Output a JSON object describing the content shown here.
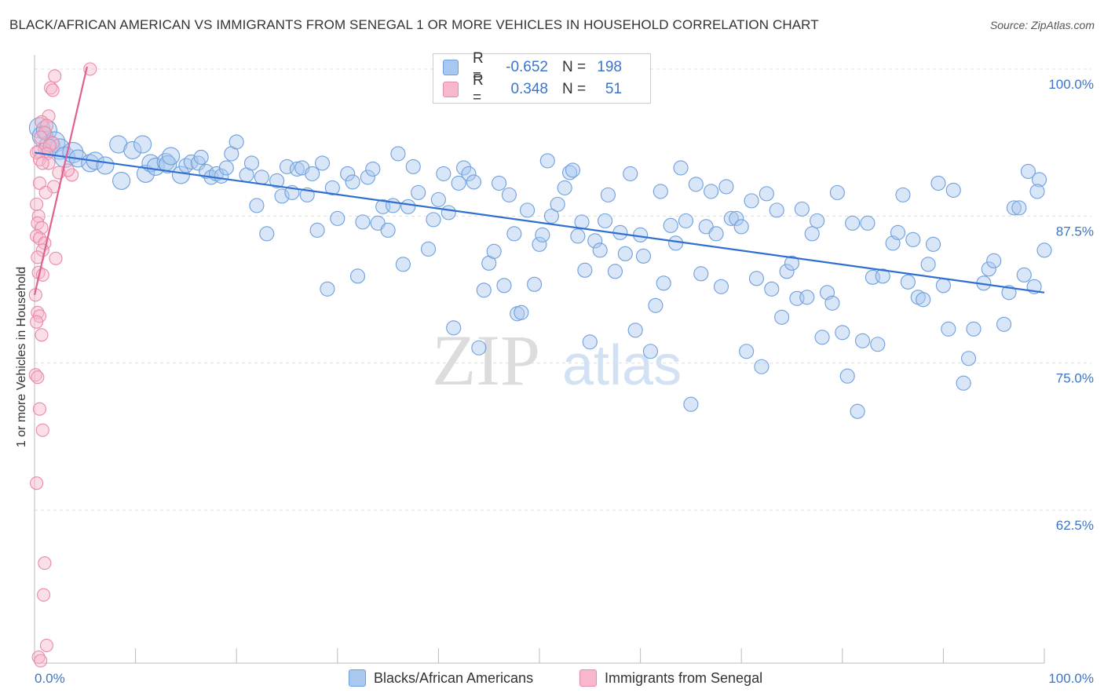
{
  "header": {
    "title": "BLACK/AFRICAN AMERICAN VS IMMIGRANTS FROM SENEGAL 1 OR MORE VEHICLES IN HOUSEHOLD CORRELATION CHART",
    "source": "Source: ZipAtlas.com"
  },
  "watermark": {
    "zip": "ZIP",
    "atlas": "atlas"
  },
  "legend": {
    "rows": [
      {
        "r_label": "R =",
        "r_value": "-0.652",
        "n_label": "N =",
        "n_value": "198"
      },
      {
        "r_label": "R =",
        "r_value": "0.348",
        "n_label": "N =",
        "n_value": "51"
      }
    ]
  },
  "bottom_legend": {
    "series1": "Blacks/African Americans",
    "series2": "Immigrants from Senegal"
  },
  "colors": {
    "blue_fill": "#a8c8f0",
    "blue_stroke": "#6f9fdc",
    "blue_line": "#2f6fd0",
    "pink_fill": "#f7b8cc",
    "pink_stroke": "#e98aa8",
    "pink_line": "#e0608f",
    "axis_label": "#3b74c9",
    "grid": "#dddddd"
  },
  "chart_data": {
    "type": "scatter",
    "title": "BLACK/AFRICAN AMERICAN VS IMMIGRANTS FROM SENEGAL 1 OR MORE VEHICLES IN HOUSEHOLD CORRELATION CHART",
    "xlabel": "",
    "ylabel": "1 or more Vehicles in Household",
    "x_tick_labels": [
      "0.0%",
      "100.0%"
    ],
    "y_tick_labels": [
      "100.0%",
      "87.5%",
      "75.0%",
      "62.5%"
    ],
    "y_ticks": [
      100.0,
      87.5,
      75.0,
      62.5
    ],
    "xlim": [
      0,
      100
    ],
    "ylim": [
      49.5,
      101.2
    ],
    "grid": true,
    "legend_position": "top-center",
    "series": [
      {
        "name": "Blacks/African Americans",
        "R": -0.652,
        "N": 198,
        "trend": {
          "x": [
            0,
            100
          ],
          "y": [
            92.9,
            81.0
          ]
        },
        "points": [
          [
            0.5,
            95.0
          ],
          [
            0.8,
            94.3
          ],
          [
            1.2,
            94.8
          ],
          [
            1.5,
            93.5
          ],
          [
            2.0,
            93.8
          ],
          [
            2.5,
            93.2
          ],
          [
            3.0,
            92.5
          ],
          [
            3.8,
            92.9
          ],
          [
            4.3,
            92.4
          ],
          [
            5.5,
            92.0
          ],
          [
            6.0,
            92.2
          ],
          [
            7.0,
            91.8
          ],
          [
            8.3,
            93.6
          ],
          [
            8.6,
            90.5
          ],
          [
            9.7,
            93.1
          ],
          [
            10.7,
            93.6
          ],
          [
            11.0,
            91.1
          ],
          [
            11.5,
            92.0
          ],
          [
            12.0,
            91.7
          ],
          [
            13.0,
            92.1
          ],
          [
            13.2,
            91.9
          ],
          [
            13.5,
            92.6
          ],
          [
            14.5,
            91.0
          ],
          [
            15.0,
            91.8
          ],
          [
            15.5,
            92.1
          ],
          [
            16.2,
            92.0
          ],
          [
            16.5,
            92.5
          ],
          [
            17.0,
            91.3
          ],
          [
            17.5,
            90.8
          ],
          [
            18.0,
            91.1
          ],
          [
            18.5,
            90.9
          ],
          [
            19.0,
            91.6
          ],
          [
            19.5,
            92.8
          ],
          [
            20.0,
            93.8
          ],
          [
            21.0,
            91.0
          ],
          [
            21.5,
            92.0
          ],
          [
            22.0,
            88.4
          ],
          [
            22.5,
            90.8
          ],
          [
            23.0,
            86.0
          ],
          [
            24.0,
            90.5
          ],
          [
            24.5,
            89.2
          ],
          [
            25.0,
            91.7
          ],
          [
            25.5,
            89.5
          ],
          [
            26.0,
            91.5
          ],
          [
            26.5,
            91.6
          ],
          [
            27.0,
            89.3
          ],
          [
            27.5,
            91.1
          ],
          [
            28.0,
            86.3
          ],
          [
            28.5,
            92.0
          ],
          [
            29.0,
            81.3
          ],
          [
            29.5,
            89.9
          ],
          [
            30.0,
            87.3
          ],
          [
            31.0,
            91.1
          ],
          [
            31.5,
            90.4
          ],
          [
            32.0,
            82.4
          ],
          [
            32.5,
            87.0
          ],
          [
            33.0,
            90.8
          ],
          [
            33.5,
            91.5
          ],
          [
            34.0,
            86.9
          ],
          [
            34.5,
            88.3
          ],
          [
            35.0,
            86.3
          ],
          [
            35.5,
            88.4
          ],
          [
            36.0,
            92.8
          ],
          [
            36.5,
            83.4
          ],
          [
            37.0,
            88.3
          ],
          [
            37.5,
            91.7
          ],
          [
            38.0,
            89.5
          ],
          [
            39.0,
            84.7
          ],
          [
            39.5,
            87.2
          ],
          [
            40.0,
            88.9
          ],
          [
            40.5,
            91.1
          ],
          [
            41.0,
            87.8
          ],
          [
            41.5,
            78.0
          ],
          [
            42.0,
            90.3
          ],
          [
            42.5,
            91.6
          ],
          [
            43.0,
            91.1
          ],
          [
            43.5,
            90.4
          ],
          [
            44.0,
            76.3
          ],
          [
            44.5,
            81.2
          ],
          [
            45.0,
            83.5
          ],
          [
            45.5,
            84.5
          ],
          [
            46.0,
            90.3
          ],
          [
            46.5,
            81.6
          ],
          [
            47.0,
            89.3
          ],
          [
            47.5,
            86.0
          ],
          [
            47.8,
            79.2
          ],
          [
            48.2,
            79.3
          ],
          [
            48.8,
            88.0
          ],
          [
            49.5,
            81.7
          ],
          [
            50.0,
            85.1
          ],
          [
            50.3,
            85.9
          ],
          [
            50.8,
            92.2
          ],
          [
            51.2,
            87.5
          ],
          [
            51.8,
            88.5
          ],
          [
            52.5,
            89.9
          ],
          [
            53.0,
            91.2
          ],
          [
            53.3,
            91.4
          ],
          [
            53.8,
            85.8
          ],
          [
            54.2,
            87.0
          ],
          [
            54.5,
            82.9
          ],
          [
            55.0,
            76.8
          ],
          [
            55.5,
            85.4
          ],
          [
            56.0,
            84.6
          ],
          [
            56.5,
            87.1
          ],
          [
            56.8,
            89.3
          ],
          [
            57.5,
            82.8
          ],
          [
            58.0,
            86.1
          ],
          [
            58.5,
            84.3
          ],
          [
            59.0,
            91.1
          ],
          [
            59.5,
            77.8
          ],
          [
            60.0,
            85.9
          ],
          [
            60.3,
            84.1
          ],
          [
            61.0,
            76.0
          ],
          [
            61.5,
            79.9
          ],
          [
            62.0,
            89.6
          ],
          [
            62.3,
            81.8
          ],
          [
            63.0,
            86.7
          ],
          [
            63.5,
            85.2
          ],
          [
            64.0,
            91.6
          ],
          [
            64.5,
            87.1
          ],
          [
            65.0,
            71.5
          ],
          [
            65.5,
            90.2
          ],
          [
            66.0,
            82.6
          ],
          [
            66.5,
            86.6
          ],
          [
            67.0,
            89.6
          ],
          [
            67.5,
            86.0
          ],
          [
            68.0,
            81.5
          ],
          [
            68.5,
            90.0
          ],
          [
            69.0,
            87.3
          ],
          [
            69.5,
            87.3
          ],
          [
            70.0,
            86.6
          ],
          [
            70.5,
            76.0
          ],
          [
            71.0,
            88.8
          ],
          [
            71.5,
            82.2
          ],
          [
            72.0,
            74.7
          ],
          [
            72.5,
            89.4
          ],
          [
            73.0,
            81.3
          ],
          [
            73.5,
            88.0
          ],
          [
            74.0,
            78.9
          ],
          [
            74.5,
            82.8
          ],
          [
            75.0,
            83.5
          ],
          [
            75.5,
            80.5
          ],
          [
            76.0,
            88.1
          ],
          [
            76.5,
            80.6
          ],
          [
            77.0,
            86.0
          ],
          [
            77.5,
            87.1
          ],
          [
            78.0,
            77.2
          ],
          [
            78.5,
            81.0
          ],
          [
            79.0,
            80.1
          ],
          [
            79.5,
            89.5
          ],
          [
            80.0,
            77.6
          ],
          [
            80.5,
            73.9
          ],
          [
            81.0,
            86.9
          ],
          [
            81.5,
            70.9
          ],
          [
            82.0,
            76.9
          ],
          [
            82.5,
            86.9
          ],
          [
            83.0,
            82.3
          ],
          [
            83.5,
            76.6
          ],
          [
            84.0,
            82.4
          ],
          [
            85.0,
            85.2
          ],
          [
            85.5,
            86.1
          ],
          [
            86.0,
            89.3
          ],
          [
            86.5,
            81.9
          ],
          [
            87.0,
            85.5
          ],
          [
            87.5,
            80.6
          ],
          [
            88.0,
            80.4
          ],
          [
            88.5,
            83.4
          ],
          [
            89.0,
            85.1
          ],
          [
            89.5,
            90.3
          ],
          [
            90.0,
            81.6
          ],
          [
            90.5,
            77.9
          ],
          [
            91.0,
            89.7
          ],
          [
            92.0,
            73.3
          ],
          [
            92.5,
            75.4
          ],
          [
            93.0,
            77.9
          ],
          [
            94.0,
            81.8
          ],
          [
            94.5,
            83.0
          ],
          [
            95.0,
            83.7
          ],
          [
            96.0,
            78.3
          ],
          [
            96.5,
            81.0
          ],
          [
            97.0,
            88.2
          ],
          [
            97.5,
            88.2
          ],
          [
            98.0,
            82.5
          ],
          [
            99.0,
            81.5
          ],
          [
            99.5,
            90.6
          ],
          [
            100.0,
            84.6
          ],
          [
            99.3,
            89.6
          ],
          [
            98.4,
            91.3
          ]
        ]
      },
      {
        "name": "Immigrants from Senegal",
        "R": 0.348,
        "N": 51,
        "trend": {
          "x": [
            0,
            5.2
          ],
          "y": [
            80.8,
            100.2
          ]
        },
        "points": [
          [
            5.5,
            100.0
          ],
          [
            2.0,
            99.4
          ],
          [
            1.6,
            98.4
          ],
          [
            1.8,
            98.2
          ],
          [
            1.4,
            96.0
          ],
          [
            0.7,
            95.5
          ],
          [
            1.2,
            95.2
          ],
          [
            1.0,
            94.6
          ],
          [
            0.6,
            94.2
          ],
          [
            1.8,
            93.7
          ],
          [
            0.4,
            93.0
          ],
          [
            1.0,
            93.2
          ],
          [
            1.5,
            93.5
          ],
          [
            1.2,
            92.8
          ],
          [
            0.2,
            92.9
          ],
          [
            0.5,
            92.3
          ],
          [
            1.4,
            92.0
          ],
          [
            0.8,
            92.0
          ],
          [
            3.7,
            91.0
          ],
          [
            3.3,
            91.4
          ],
          [
            2.4,
            91.2
          ],
          [
            1.9,
            90.0
          ],
          [
            0.5,
            90.3
          ],
          [
            1.1,
            89.5
          ],
          [
            0.2,
            88.5
          ],
          [
            0.4,
            87.5
          ],
          [
            0.3,
            86.9
          ],
          [
            0.7,
            86.5
          ],
          [
            0.2,
            85.8
          ],
          [
            0.5,
            85.6
          ],
          [
            1.0,
            85.2
          ],
          [
            0.8,
            84.6
          ],
          [
            0.3,
            84.0
          ],
          [
            2.1,
            83.9
          ],
          [
            0.4,
            82.7
          ],
          [
            0.8,
            82.5
          ],
          [
            0.1,
            80.8
          ],
          [
            0.3,
            79.3
          ],
          [
            0.5,
            79.0
          ],
          [
            0.2,
            78.5
          ],
          [
            0.7,
            77.4
          ],
          [
            0.1,
            74.0
          ],
          [
            0.3,
            73.8
          ],
          [
            0.5,
            71.1
          ],
          [
            0.8,
            69.3
          ],
          [
            0.2,
            64.8
          ],
          [
            1.0,
            58.0
          ],
          [
            0.9,
            55.3
          ],
          [
            1.2,
            51.0
          ],
          [
            0.4,
            50.0
          ],
          [
            0.6,
            49.7
          ]
        ]
      }
    ]
  }
}
